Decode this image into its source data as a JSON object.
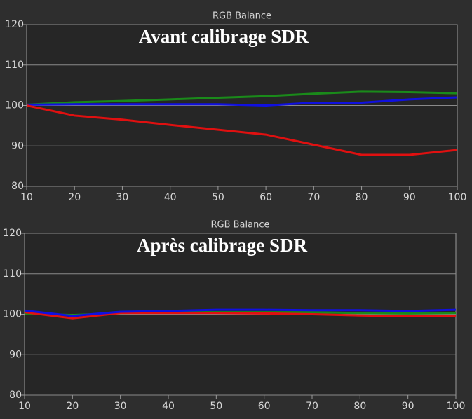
{
  "chart_data": [
    {
      "type": "line",
      "title": "RGB Balance",
      "annotation": "Avant calibrage SDR",
      "x": [
        10,
        20,
        30,
        40,
        50,
        60,
        70,
        80,
        90,
        100
      ],
      "series": [
        {
          "color": "#1a8a1a",
          "values": [
            100.2,
            100.8,
            101.1,
            101.5,
            101.9,
            102.3,
            102.9,
            103.4,
            103.3,
            103.0
          ]
        },
        {
          "color": "#1010e0",
          "values": [
            100.2,
            100.3,
            100.3,
            100.3,
            100.3,
            100.0,
            100.7,
            100.7,
            101.5,
            102.0
          ]
        },
        {
          "color": "#e01010",
          "values": [
            100.0,
            97.5,
            96.5,
            95.2,
            94.0,
            92.8,
            90.3,
            87.8,
            87.8,
            89.0
          ]
        }
      ],
      "xlim": [
        10,
        100
      ],
      "xticks": [
        10,
        20,
        30,
        40,
        50,
        60,
        70,
        80,
        90,
        100
      ],
      "ylim": [
        80,
        120
      ],
      "yticks": [
        80,
        90,
        100,
        110,
        120
      ],
      "grid": true
    },
    {
      "type": "line",
      "title": "RGB Balance",
      "annotation": "Après calibrage SDR",
      "x": [
        10,
        20,
        30,
        40,
        50,
        60,
        70,
        80,
        90,
        100
      ],
      "series": [
        {
          "color": "#1a8a1a",
          "values": [
            100.2,
            99.8,
            100.3,
            100.5,
            100.5,
            100.5,
            100.5,
            100.3,
            100.2,
            100.3
          ]
        },
        {
          "color": "#e01010",
          "values": [
            100.5,
            99.0,
            100.3,
            100.3,
            100.3,
            100.2,
            100.0,
            99.7,
            99.5,
            99.5
          ]
        },
        {
          "color": "#1010e0",
          "values": [
            100.9,
            99.6,
            100.6,
            100.8,
            101.1,
            101.1,
            101.0,
            101.0,
            100.8,
            101.1
          ]
        }
      ],
      "xlim": [
        10,
        100
      ],
      "xticks": [
        10,
        20,
        30,
        40,
        50,
        60,
        70,
        80,
        90,
        100
      ],
      "ylim": [
        80,
        120
      ],
      "yticks": [
        80,
        90,
        100,
        110,
        120
      ],
      "grid": true
    }
  ]
}
